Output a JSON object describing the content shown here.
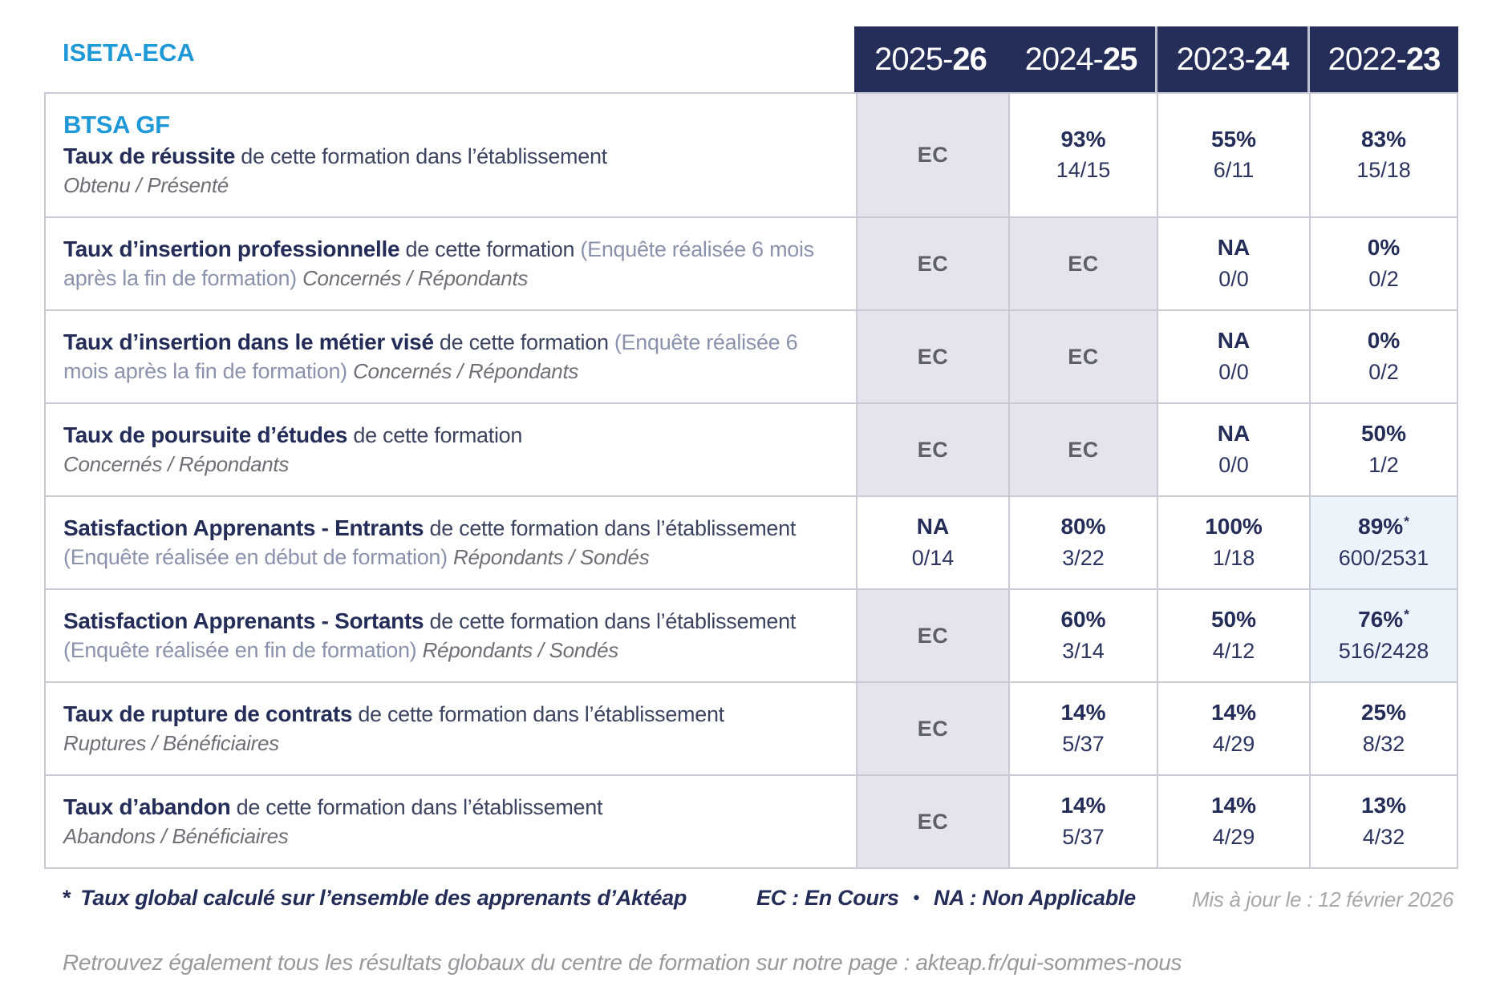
{
  "org": "ISETA-ECA",
  "program": "BTSA GF",
  "year_columns": [
    {
      "prefix": "2025-",
      "suffix": "26"
    },
    {
      "prefix": "2024-",
      "suffix": "25"
    },
    {
      "prefix": "2023-",
      "suffix": "24"
    },
    {
      "prefix": "2022-",
      "suffix": "23"
    }
  ],
  "rows": [
    {
      "show_program": true,
      "segments": [
        {
          "style": "title",
          "text": "Taux de réussite"
        },
        {
          "style": "desc",
          "text": " de cette formation dans l’établissement"
        },
        {
          "style": "break"
        },
        {
          "style": "subnote",
          "text": "Obtenu / Présenté"
        }
      ],
      "cells": [
        {
          "type": "ec",
          "text": "EC"
        },
        {
          "type": "value",
          "main": "93%",
          "sub": "14/15"
        },
        {
          "type": "value",
          "main": "55%",
          "sub": "6/11"
        },
        {
          "type": "value",
          "main": "83%",
          "sub": "15/18"
        }
      ]
    },
    {
      "segments": [
        {
          "style": "title",
          "text": "Taux d’insertion professionnelle"
        },
        {
          "style": "desc",
          "text": " de cette formation "
        },
        {
          "style": "paren",
          "text": "(Enquête réalisée 6 mois après la fin de formation) "
        },
        {
          "style": "subnote",
          "text": "Concernés / Répondants"
        }
      ],
      "cells": [
        {
          "type": "ec",
          "text": "EC"
        },
        {
          "type": "ec",
          "text": "EC"
        },
        {
          "type": "value",
          "main": "NA",
          "sub": "0/0"
        },
        {
          "type": "value",
          "main": "0%",
          "sub": "0/2"
        }
      ]
    },
    {
      "segments": [
        {
          "style": "title",
          "text": "Taux d’insertion dans le métier visé"
        },
        {
          "style": "desc",
          "text": " de cette formation "
        },
        {
          "style": "paren",
          "text": "(Enquête réalisée 6 mois après la fin de formation) "
        },
        {
          "style": "subnote",
          "text": "Concernés / Répondants"
        }
      ],
      "cells": [
        {
          "type": "ec",
          "text": "EC"
        },
        {
          "type": "ec",
          "text": "EC"
        },
        {
          "type": "value",
          "main": "NA",
          "sub": "0/0"
        },
        {
          "type": "value",
          "main": "0%",
          "sub": "0/2"
        }
      ]
    },
    {
      "segments": [
        {
          "style": "title",
          "text": "Taux de poursuite d’études"
        },
        {
          "style": "desc",
          "text": " de cette formation"
        },
        {
          "style": "break"
        },
        {
          "style": "subnote",
          "text": "Concernés / Répondants"
        }
      ],
      "cells": [
        {
          "type": "ec",
          "text": "EC"
        },
        {
          "type": "ec",
          "text": "EC"
        },
        {
          "type": "value",
          "main": "NA",
          "sub": "0/0"
        },
        {
          "type": "value",
          "main": "50%",
          "sub": "1/2"
        }
      ]
    },
    {
      "segments": [
        {
          "style": "title",
          "text": "Satisfaction Apprenants - Entrants"
        },
        {
          "style": "desc",
          "text": " de cette formation dans l’établissement "
        },
        {
          "style": "paren",
          "text": "(Enquête réalisée en début de formation) "
        },
        {
          "style": "subnote",
          "text": "Répondants / Sondés"
        }
      ],
      "cells": [
        {
          "type": "value",
          "main": "NA",
          "sub": "0/14"
        },
        {
          "type": "value",
          "main": "80%",
          "sub": "3/22"
        },
        {
          "type": "value",
          "main": "100%",
          "sub": "1/18"
        },
        {
          "type": "value",
          "main": "89%",
          "asterisk": "*",
          "sub": "600/2531",
          "highlight": true
        }
      ]
    },
    {
      "segments": [
        {
          "style": "title",
          "text": "Satisfaction Apprenants - Sortants"
        },
        {
          "style": "desc",
          "text": " de cette formation dans l’établissement "
        },
        {
          "style": "paren",
          "text": "(Enquête réalisée en fin de formation) "
        },
        {
          "style": "subnote",
          "text": "Répondants / Sondés"
        }
      ],
      "cells": [
        {
          "type": "ec",
          "text": "EC"
        },
        {
          "type": "value",
          "main": "60%",
          "sub": "3/14"
        },
        {
          "type": "value",
          "main": "50%",
          "sub": "4/12"
        },
        {
          "type": "value",
          "main": "76%",
          "asterisk": "*",
          "sub": "516/2428",
          "highlight": true
        }
      ]
    },
    {
      "segments": [
        {
          "style": "title",
          "text": "Taux de rupture de contrats"
        },
        {
          "style": "desc",
          "text": " de cette formation dans l’établissement"
        },
        {
          "style": "break"
        },
        {
          "style": "subnote",
          "text": "Ruptures / Bénéficiaires"
        }
      ],
      "cells": [
        {
          "type": "ec",
          "text": "EC"
        },
        {
          "type": "value",
          "main": "14%",
          "sub": "5/37"
        },
        {
          "type": "value",
          "main": "14%",
          "sub": "4/29"
        },
        {
          "type": "value",
          "main": "25%",
          "sub": "8/32"
        }
      ]
    },
    {
      "segments": [
        {
          "style": "title",
          "text": "Taux d’abandon"
        },
        {
          "style": "desc",
          "text": " de cette formation dans l’établissement"
        },
        {
          "style": "break"
        },
        {
          "style": "subnote",
          "text": "Abandons / Bénéficiaires"
        }
      ],
      "cells": [
        {
          "type": "ec",
          "text": "EC"
        },
        {
          "type": "value",
          "main": "14%",
          "sub": "5/37"
        },
        {
          "type": "value",
          "main": "14%",
          "sub": "4/29"
        },
        {
          "type": "value",
          "main": "13%",
          "sub": "4/32"
        }
      ]
    }
  ],
  "footer": {
    "star": "*",
    "note": "Taux global calculé sur l’ensemble des apprenants d’Aktéap",
    "legend_ec": "EC : En Cours",
    "legend_sep": "•",
    "legend_na": "NA : Non Applicable",
    "updated": "Mis à jour le : 12 février 2026",
    "bottom": "Retrouvez également tous les résultats globaux du centre de formation sur notre page : akteap.fr/qui-sommes-nous"
  },
  "colors": {
    "accent_blue": "#1e98d6",
    "navy": "#242d58",
    "header_bg": "#242e59",
    "desc_gray": "#3c445f",
    "paren_slate": "#8b92ab",
    "subnote_gray": "#6f6f78",
    "ec_text": "#5d6067",
    "ec_bg": "#e5e4ed",
    "highlight_bg": "#edf3fa",
    "border": "#c9cad5",
    "updated_gray": "#a7a7ac",
    "bottom_gray": "#98989d"
  }
}
